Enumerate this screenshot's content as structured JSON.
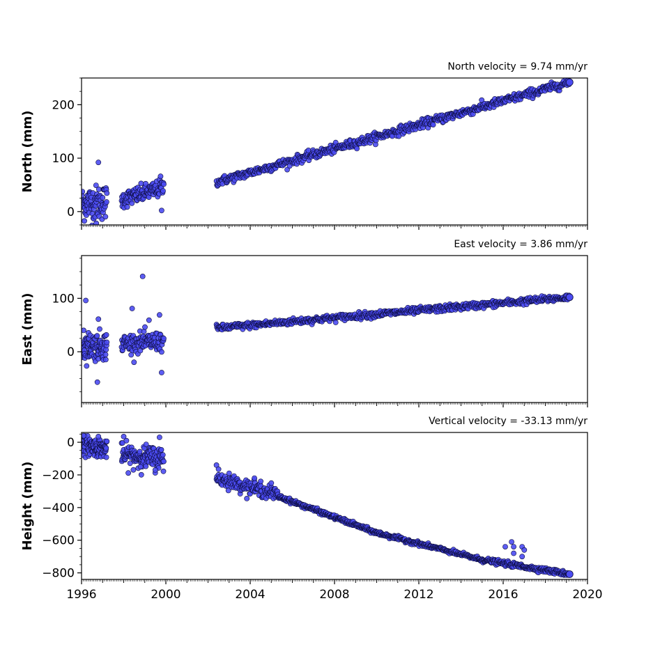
{
  "chart_data": {
    "type": "scatter",
    "shared_x": {
      "ticks": [
        1996,
        2000,
        2004,
        2008,
        2012,
        2016,
        2020
      ],
      "tick_labels": [
        "1996",
        "2000",
        "2004",
        "2008",
        "2012",
        "2016",
        "2020"
      ],
      "range": [
        1996,
        2020
      ]
    },
    "marker_color": "#4b4bf2",
    "marker_edge_color": "#0b0b3a",
    "panels": [
      {
        "id": "north",
        "ylabel": "North (mm)",
        "annotation": "North velocity = 9.74 mm/yr",
        "ylim": [
          -25,
          250
        ],
        "yticks": [
          0,
          100,
          200
        ],
        "ytick_labels": [
          "0",
          "100",
          "200"
        ],
        "segments": [
          {
            "x_start": 1996.0,
            "x_end": 1997.2,
            "y_start": 15,
            "y_end": 18,
            "noise": 16,
            "count": 90
          },
          {
            "x_start": 1997.9,
            "x_end": 1999.9,
            "y_start": 22,
            "y_end": 45,
            "noise": 8,
            "count": 120
          },
          {
            "x_start": 2002.4,
            "x_end": 2019.15,
            "y_start": 55,
            "y_end": 242,
            "noise": 4,
            "count": 700
          }
        ],
        "outliers": [
          [
            1996.8,
            92
          ],
          [
            1996.7,
            -22
          ],
          [
            1999.8,
            2
          ],
          [
            1999.75,
            66
          ]
        ]
      },
      {
        "id": "east",
        "ylabel": "East (mm)",
        "annotation": "East velocity = 3.86 mm/yr",
        "ylim": [
          -95,
          180
        ],
        "yticks": [
          0,
          100
        ],
        "ytick_labels": [
          "0",
          "100"
        ],
        "segments": [
          {
            "x_start": 1996.0,
            "x_end": 1997.2,
            "y_start": 10,
            "y_end": 12,
            "noise": 13,
            "count": 100
          },
          {
            "x_start": 1997.9,
            "x_end": 1999.9,
            "y_start": 15,
            "y_end": 20,
            "noise": 9,
            "count": 120
          },
          {
            "x_start": 2002.4,
            "x_end": 2019.15,
            "y_start": 44,
            "y_end": 102,
            "noise": 3,
            "count": 700
          }
        ],
        "outliers": [
          [
            1996.2,
            96
          ],
          [
            1998.9,
            141
          ],
          [
            1998.4,
            81
          ],
          [
            1996.8,
            61
          ],
          [
            1996.75,
            -57
          ],
          [
            1999.8,
            -39
          ],
          [
            1999.2,
            59
          ],
          [
            1999.7,
            69
          ],
          [
            1996.1,
            40
          ]
        ]
      },
      {
        "id": "height",
        "ylabel": "Height (mm)",
        "annotation": "Vertical velocity = -33.13 mm/yr",
        "ylim": [
          -840,
          60
        ],
        "yticks": [
          0,
          -200,
          -400,
          -600,
          -800
        ],
        "ytick_labels": [
          "0",
          "−200",
          "−400",
          "−600",
          "−800"
        ],
        "segments": [
          {
            "x_start": 1996.0,
            "x_end": 1997.2,
            "y_start": -15,
            "y_end": -40,
            "noise": 28,
            "count": 110
          },
          {
            "x_start": 1997.9,
            "x_end": 1999.9,
            "y_start": -80,
            "y_end": -100,
            "noise": 35,
            "count": 140
          },
          {
            "x_start": 2002.4,
            "x_end": 2005.3,
            "y_start": -220,
            "y_end": -320,
            "noise": 20,
            "count": 150
          },
          {
            "x_start": 2005.3,
            "x_end": 2010.0,
            "y_start": -330,
            "y_end": -555,
            "noise": 6,
            "count": 240
          },
          {
            "x_start": 2010.0,
            "x_end": 2015.0,
            "y_start": -555,
            "y_end": -720,
            "noise": 6,
            "count": 240
          },
          {
            "x_start": 2015.0,
            "x_end": 2019.15,
            "y_start": -720,
            "y_end": -808,
            "noise": 7,
            "count": 200
          }
        ],
        "outliers": [
          [
            2002.4,
            -140
          ],
          [
            2002.5,
            -165
          ],
          [
            2003.0,
            -190
          ],
          [
            2004.2,
            -220
          ],
          [
            2004.5,
            -240
          ],
          [
            2005.0,
            -250
          ],
          [
            2016.4,
            -610
          ],
          [
            2016.5,
            -640
          ],
          [
            2016.9,
            -640
          ],
          [
            2017.0,
            -660
          ],
          [
            2016.1,
            -640
          ],
          [
            2016.5,
            -680
          ],
          [
            2016.9,
            -700
          ],
          [
            1996.8,
            35
          ],
          [
            1996.1,
            40
          ],
          [
            1998.0,
            35
          ],
          [
            1999.7,
            30
          ],
          [
            1998.8,
            -150
          ],
          [
            1999.5,
            -170
          ]
        ]
      }
    ]
  }
}
